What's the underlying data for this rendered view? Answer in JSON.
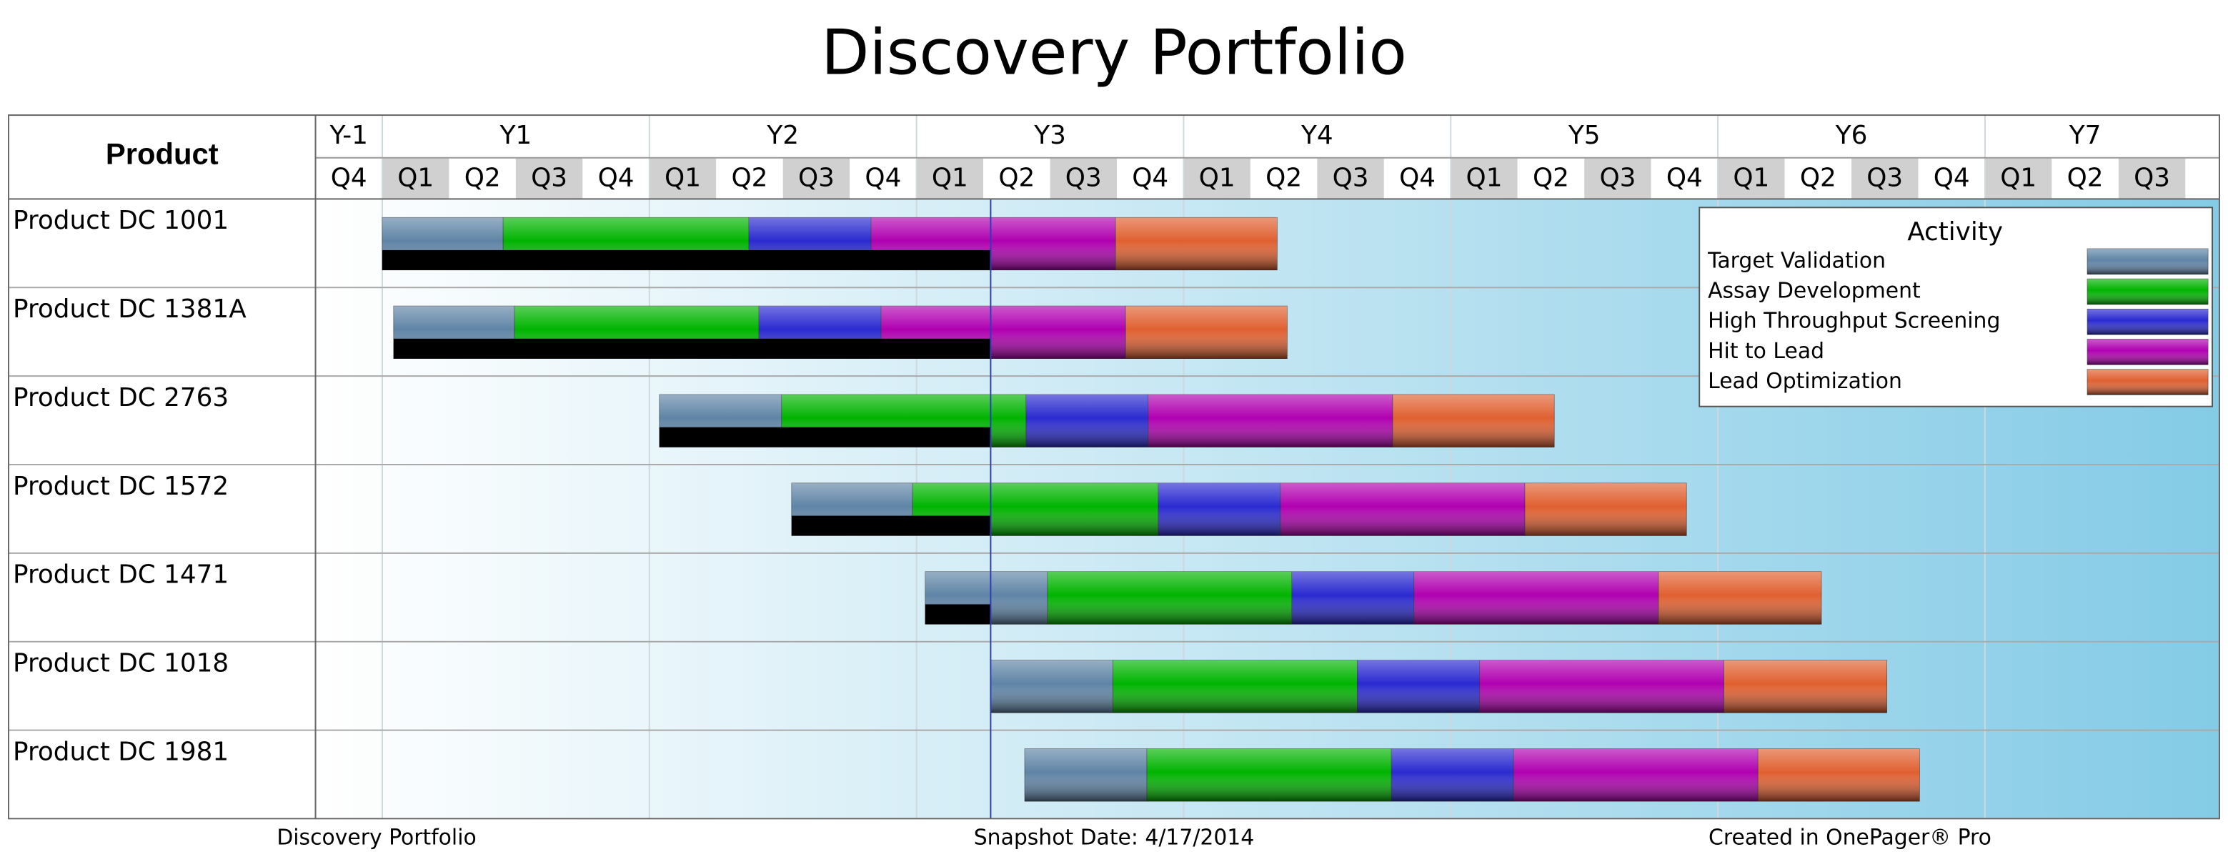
{
  "chart_data": {
    "type": "gantt",
    "title": "Discovery Portfolio",
    "product_header": "Product",
    "years": [
      {
        "name": "Y-1",
        "quarters": [
          "Q4"
        ]
      },
      {
        "name": "Y1",
        "quarters": [
          "Q1",
          "Q2",
          "Q3",
          "Q4"
        ]
      },
      {
        "name": "Y2",
        "quarters": [
          "Q1",
          "Q2",
          "Q3",
          "Q4"
        ]
      },
      {
        "name": "Y3",
        "quarters": [
          "Q1",
          "Q2",
          "Q3",
          "Q4"
        ]
      },
      {
        "name": "Y4",
        "quarters": [
          "Q1",
          "Q2",
          "Q3",
          "Q4"
        ]
      },
      {
        "name": "Y5",
        "quarters": [
          "Q1",
          "Q2",
          "Q3",
          "Q4"
        ]
      },
      {
        "name": "Y6",
        "quarters": [
          "Q1",
          "Q2",
          "Q3",
          "Q4"
        ]
      },
      {
        "name": "Y7",
        "quarters": [
          "Q1",
          "Q2",
          "Q3"
        ]
      }
    ],
    "xlim": [
      0,
      28.51
    ],
    "status_line": 10.11,
    "legend_title": "Activity",
    "activities": [
      {
        "name": "Target Validation",
        "color": "#5f84a6"
      },
      {
        "name": "Assay Development",
        "color": "#00b400"
      },
      {
        "name": "High Throughput Screening",
        "color": "#2a2ad0"
      },
      {
        "name": "Hit to Lead",
        "color": "#b000b0"
      },
      {
        "name": "Lead Optimization",
        "color": "#e06030"
      }
    ],
    "products": [
      {
        "name": "Product DC 1001",
        "bounds": [
          1.0,
          2.81,
          6.49,
          8.32,
          11.98,
          14.4
        ]
      },
      {
        "name": "Product DC 1381A",
        "bounds": [
          1.17,
          2.98,
          6.64,
          8.47,
          12.13,
          14.55
        ]
      },
      {
        "name": "Product DC 2763",
        "bounds": [
          5.15,
          6.98,
          10.64,
          12.47,
          16.13,
          18.55
        ]
      },
      {
        "name": "Product DC 1572",
        "bounds": [
          7.13,
          8.94,
          12.62,
          14.45,
          18.11,
          20.53
        ]
      },
      {
        "name": "Product DC 1471",
        "bounds": [
          9.13,
          10.96,
          14.62,
          16.45,
          20.11,
          22.55
        ]
      },
      {
        "name": "Product DC 1018",
        "bounds": [
          10.11,
          11.94,
          15.6,
          17.43,
          21.09,
          23.53
        ]
      },
      {
        "name": "Product DC 1981",
        "bounds": [
          10.62,
          12.45,
          16.11,
          17.94,
          21.6,
          24.02
        ]
      }
    ],
    "footer": [
      "Discovery Portfolio",
      "Snapshot Date: 4/17/2014",
      "Created in OnePager® Pro"
    ]
  }
}
